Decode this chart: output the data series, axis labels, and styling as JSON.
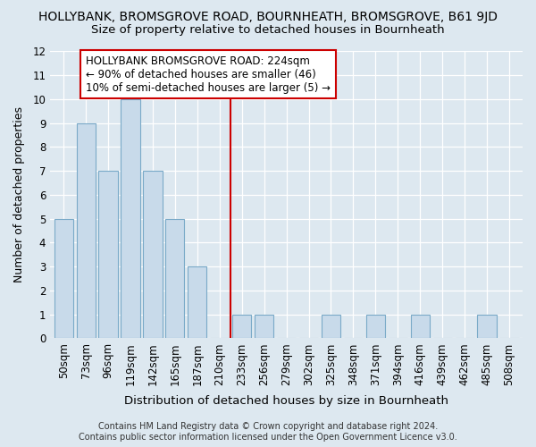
{
  "title": "HOLLYBANK, BROMSGROVE ROAD, BOURNHEATH, BROMSGROVE, B61 9JD",
  "subtitle": "Size of property relative to detached houses in Bournheath",
  "xlabel": "Distribution of detached houses by size in Bournheath",
  "ylabel": "Number of detached properties",
  "bar_color": "#c8daea",
  "bar_edge_color": "#7aaac8",
  "bins": [
    "50sqm",
    "73sqm",
    "96sqm",
    "119sqm",
    "142sqm",
    "165sqm",
    "187sqm",
    "210sqm",
    "233sqm",
    "256sqm",
    "279sqm",
    "302sqm",
    "325sqm",
    "348sqm",
    "371sqm",
    "394sqm",
    "416sqm",
    "439sqm",
    "462sqm",
    "485sqm",
    "508sqm"
  ],
  "values": [
    5,
    9,
    7,
    10,
    7,
    5,
    3,
    0,
    1,
    1,
    0,
    0,
    1,
    0,
    1,
    0,
    1,
    0,
    0,
    1,
    0
  ],
  "ylim": [
    0,
    12
  ],
  "yticks": [
    0,
    1,
    2,
    3,
    4,
    5,
    6,
    7,
    8,
    9,
    10,
    11,
    12
  ],
  "vline_x": 7.5,
  "vline_color": "#cc0000",
  "annotation_text": "HOLLYBANK BROMSGROVE ROAD: 224sqm\n← 90% of detached houses are smaller (46)\n10% of semi-detached houses are larger (5) →",
  "annotation_box_facecolor": "#ffffff",
  "annotation_box_edgecolor": "#cc0000",
  "footer1": "Contains HM Land Registry data © Crown copyright and database right 2024.",
  "footer2": "Contains public sector information licensed under the Open Government Licence v3.0.",
  "background_color": "#dde8f0",
  "grid_color": "#ffffff",
  "title_fontsize": 10,
  "subtitle_fontsize": 9.5,
  "xlabel_fontsize": 9.5,
  "ylabel_fontsize": 9,
  "tick_fontsize": 8.5,
  "annot_fontsize": 8.5,
  "footer_fontsize": 7
}
